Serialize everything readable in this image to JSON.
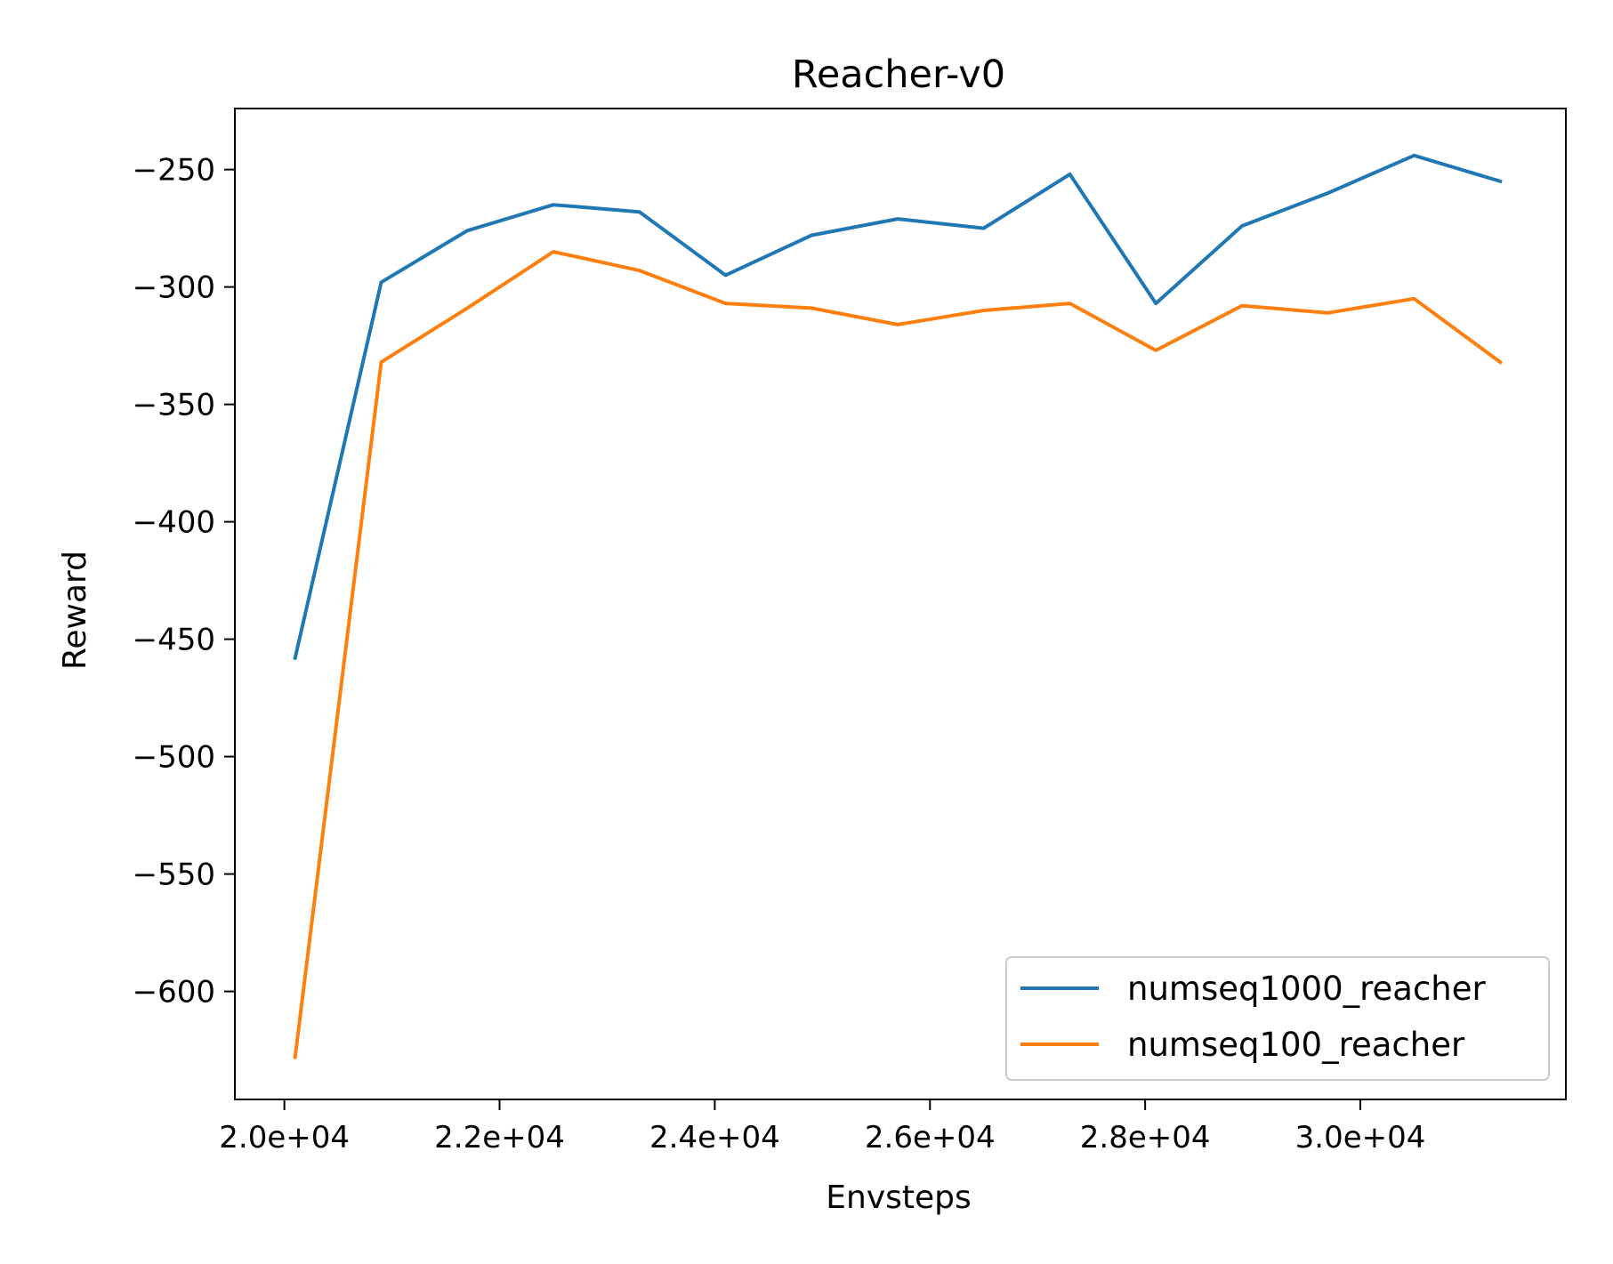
{
  "chart_data": {
    "type": "line",
    "title": "Reacher-v0",
    "xlabel": "Envsteps",
    "ylabel": "Reward",
    "x_ticks": [
      20000,
      22000,
      24000,
      26000,
      28000,
      30000
    ],
    "x_tick_labels": [
      "2.0e+04",
      "2.2e+04",
      "2.4e+04",
      "2.6e+04",
      "2.8e+04",
      "3.0e+04"
    ],
    "y_ticks": [
      -250,
      -300,
      -350,
      -400,
      -450,
      -500,
      -550,
      -600
    ],
    "y_tick_labels": [
      "−250",
      "−300",
      "−350",
      "−400",
      "−450",
      "−500",
      "−550",
      "−600"
    ],
    "xlim": [
      19540,
      31910
    ],
    "ylim": [
      -646,
      -224
    ],
    "grid": false,
    "legend_position": "lower-right",
    "x": [
      20100,
      20900,
      21700,
      22500,
      23300,
      24100,
      24900,
      25700,
      26500,
      27300,
      28100,
      28900,
      29700,
      30500,
      31300
    ],
    "series": [
      {
        "name": "numseq1000_reacher",
        "color": "#1f77b4",
        "values": [
          -458,
          -298,
          -276,
          -265,
          -268,
          -295,
          -278,
          -271,
          -275,
          -252,
          -307,
          -274,
          -260,
          -244,
          -255
        ]
      },
      {
        "name": "numseq100_reacher",
        "color": "#ff7f0e",
        "values": [
          -628,
          -332,
          -309,
          -285,
          -293,
          -307,
          -309,
          -316,
          -310,
          -307,
          -327,
          -308,
          -311,
          -305,
          -332
        ]
      }
    ]
  }
}
